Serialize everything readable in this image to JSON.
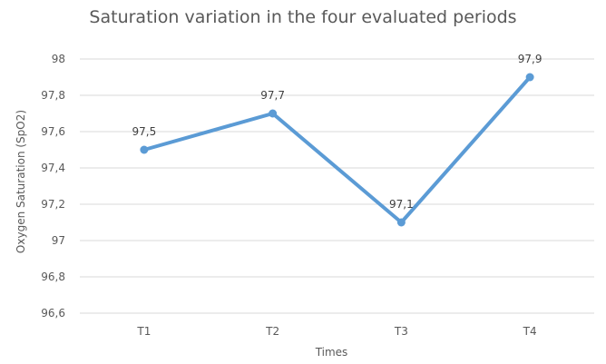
{
  "chart_data": {
    "type": "line",
    "title": "Saturation variation in the four evaluated periods",
    "xlabel": "Times",
    "ylabel": "Oxygen Saturation (SpO2)",
    "categories": [
      "T1",
      "T2",
      "T3",
      "T4"
    ],
    "series": [
      {
        "values": [
          97.5,
          97.7,
          97.1,
          97.9
        ],
        "data_labels": [
          "97,5",
          "97,7",
          "97,1",
          "97,9"
        ],
        "color": "#5b9bd5"
      }
    ],
    "ylim": [
      96.6,
      98
    ],
    "yticks": [
      96.6,
      96.8,
      97,
      97.2,
      97.4,
      97.6,
      97.8,
      98
    ],
    "ytick_labels": [
      "96,6",
      "96,8",
      "97",
      "97,2",
      "97,4",
      "97,6",
      "97,8",
      "98"
    ],
    "grid": true,
    "legend": "none",
    "gridline_color": "#d9d9d9"
  }
}
